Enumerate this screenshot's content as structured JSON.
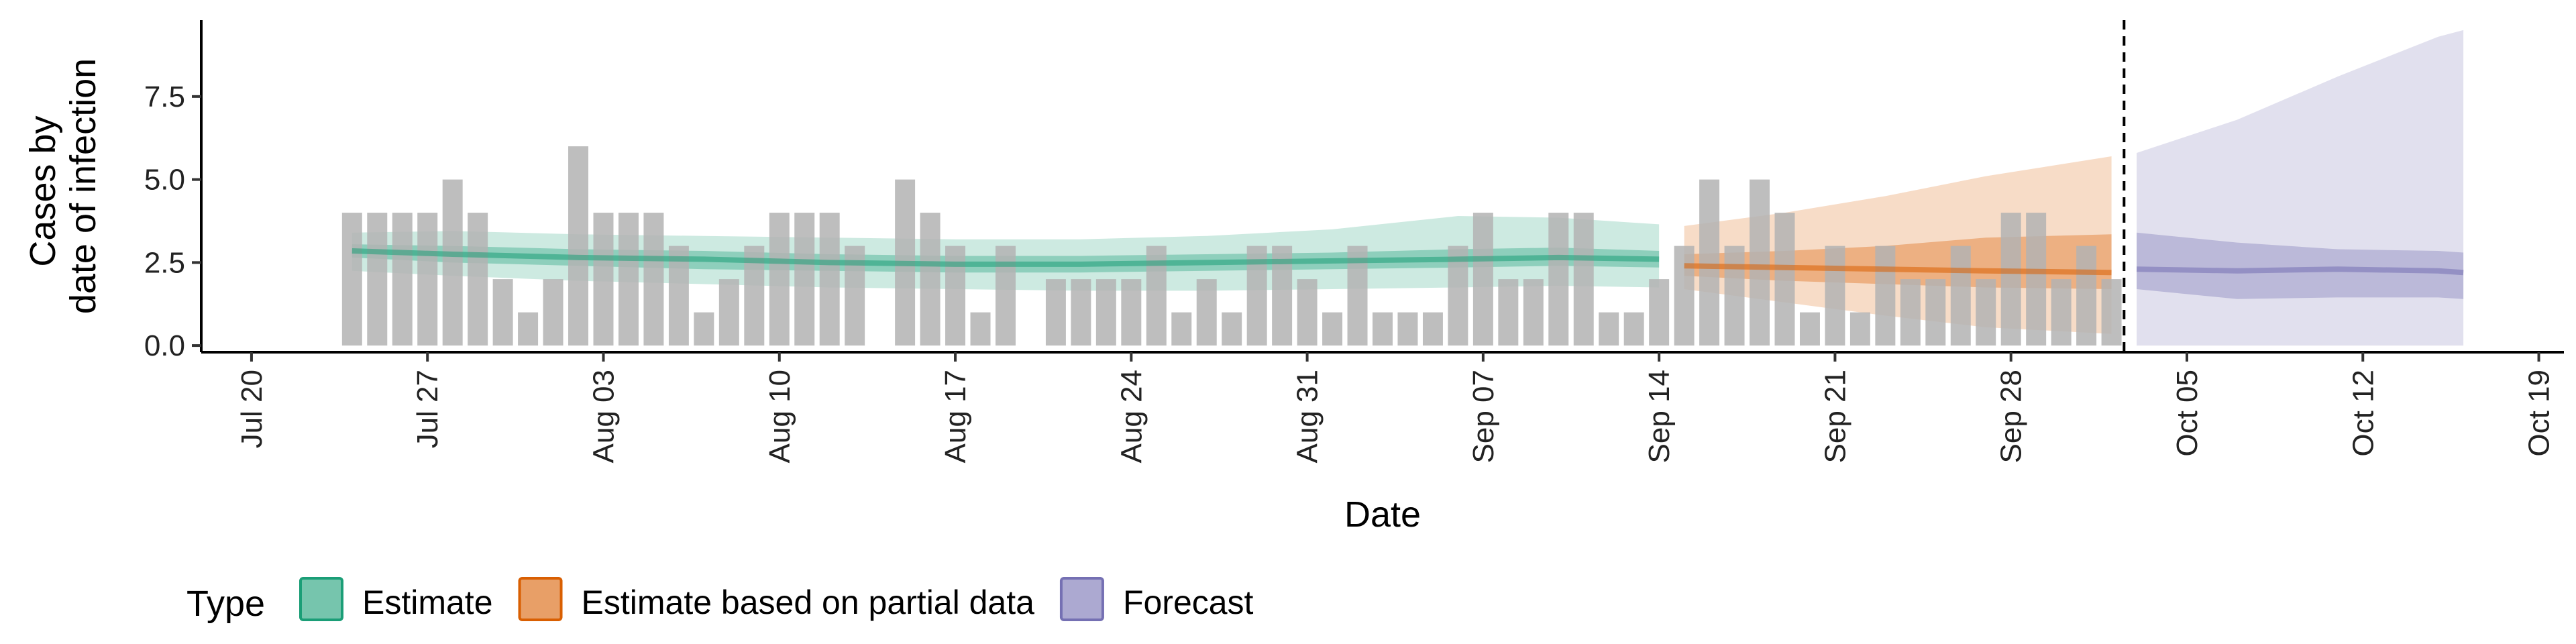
{
  "chart_data": {
    "type": "bar",
    "xlabel": "Date",
    "ylabel_lines": [
      "Cases by",
      "date of infection"
    ],
    "ylim": [
      -0.2,
      9.8
    ],
    "yticks": [
      {
        "value": 0.0,
        "label": "0.0"
      },
      {
        "value": 2.5,
        "label": "2.5"
      },
      {
        "value": 5.0,
        "label": "5.0"
      },
      {
        "value": 7.5,
        "label": "7.5"
      }
    ],
    "xlim": [
      "2020-07-18",
      "2020-10-20"
    ],
    "xticks": [
      {
        "date": "2020-07-20",
        "label": "Jul 20"
      },
      {
        "date": "2020-07-27",
        "label": "Jul 27"
      },
      {
        "date": "2020-08-03",
        "label": "Aug 03"
      },
      {
        "date": "2020-08-10",
        "label": "Aug 10"
      },
      {
        "date": "2020-08-17",
        "label": "Aug 17"
      },
      {
        "date": "2020-08-24",
        "label": "Aug 24"
      },
      {
        "date": "2020-08-31",
        "label": "Aug 31"
      },
      {
        "date": "2020-09-07",
        "label": "Sep 07"
      },
      {
        "date": "2020-09-14",
        "label": "Sep 14"
      },
      {
        "date": "2020-09-21",
        "label": "Sep 21"
      },
      {
        "date": "2020-09-28",
        "label": "Sep 28"
      },
      {
        "date": "2020-10-05",
        "label": "Oct 05"
      },
      {
        "date": "2020-10-12",
        "label": "Oct 12"
      },
      {
        "date": "2020-10-19",
        "label": "Oct 19"
      }
    ],
    "bar_color": "#b3b3b3",
    "cases": {
      "dates": [
        "2020-07-24",
        "2020-07-25",
        "2020-07-26",
        "2020-07-27",
        "2020-07-28",
        "2020-07-29",
        "2020-07-30",
        "2020-07-31",
        "2020-08-01",
        "2020-08-02",
        "2020-08-03",
        "2020-08-04",
        "2020-08-05",
        "2020-08-06",
        "2020-08-07",
        "2020-08-08",
        "2020-08-09",
        "2020-08-10",
        "2020-08-11",
        "2020-08-12",
        "2020-08-13",
        "2020-08-14",
        "2020-08-15",
        "2020-08-16",
        "2020-08-17",
        "2020-08-18",
        "2020-08-19",
        "2020-08-20",
        "2020-08-21",
        "2020-08-22",
        "2020-08-23",
        "2020-08-24",
        "2020-08-25",
        "2020-08-26",
        "2020-08-27",
        "2020-08-28",
        "2020-08-29",
        "2020-08-30",
        "2020-08-31",
        "2020-09-01",
        "2020-09-02",
        "2020-09-03",
        "2020-09-04",
        "2020-09-05",
        "2020-09-06",
        "2020-09-07",
        "2020-09-08",
        "2020-09-09",
        "2020-09-10",
        "2020-09-11",
        "2020-09-12",
        "2020-09-13",
        "2020-09-14",
        "2020-09-15",
        "2020-09-16",
        "2020-09-17",
        "2020-09-18",
        "2020-09-19",
        "2020-09-20",
        "2020-09-21",
        "2020-09-22",
        "2020-09-23",
        "2020-09-24",
        "2020-09-25",
        "2020-09-26",
        "2020-09-27",
        "2020-09-28",
        "2020-09-29",
        "2020-09-30",
        "2020-10-01",
        "2020-10-02"
      ],
      "values": [
        4,
        4,
        4,
        4,
        5,
        4,
        2,
        1,
        2,
        6,
        4,
        4,
        4,
        3,
        1,
        2,
        3,
        4,
        4,
        4,
        3,
        0,
        5,
        4,
        3,
        1,
        3,
        0,
        2,
        2,
        2,
        2,
        3,
        1,
        2,
        1,
        3,
        3,
        2,
        1,
        3,
        1,
        1,
        1,
        3,
        4,
        2,
        2,
        4,
        4,
        1,
        1,
        2,
        3,
        5,
        3,
        5,
        4,
        1,
        3,
        1,
        3,
        2,
        2,
        3,
        2,
        4,
        4,
        2,
        3,
        2
      ]
    },
    "series": [
      {
        "name": "Estimate",
        "color": "#1b9e77",
        "dates": [
          "2020-07-24",
          "2020-07-28",
          "2020-08-02",
          "2020-08-07",
          "2020-08-12",
          "2020-08-17",
          "2020-08-22",
          "2020-08-27",
          "2020-09-01",
          "2020-09-06",
          "2020-09-10",
          "2020-09-14"
        ],
        "median": [
          2.85,
          2.75,
          2.65,
          2.6,
          2.5,
          2.45,
          2.45,
          2.5,
          2.55,
          2.6,
          2.65,
          2.6
        ],
        "lower50": [
          2.65,
          2.5,
          2.4,
          2.3,
          2.25,
          2.2,
          2.2,
          2.25,
          2.3,
          2.35,
          2.4,
          2.35
        ],
        "upper50": [
          3.05,
          3.0,
          2.9,
          2.85,
          2.75,
          2.7,
          2.7,
          2.75,
          2.8,
          2.9,
          2.95,
          2.85
        ],
        "lower90": [
          2.25,
          2.1,
          1.95,
          1.85,
          1.75,
          1.7,
          1.65,
          1.65,
          1.7,
          1.75,
          1.8,
          1.75
        ],
        "upper90": [
          3.4,
          3.45,
          3.35,
          3.3,
          3.25,
          3.2,
          3.2,
          3.3,
          3.5,
          3.9,
          3.85,
          3.65
        ]
      },
      {
        "name": "Estimate based on partial data",
        "color": "#d95f02",
        "dates": [
          "2020-09-15",
          "2020-09-19",
          "2020-09-23",
          "2020-09-27",
          "2020-10-02"
        ],
        "median": [
          2.4,
          2.35,
          2.3,
          2.25,
          2.2
        ],
        "lower50": [
          2.1,
          1.95,
          1.85,
          1.75,
          1.7
        ],
        "upper50": [
          2.75,
          2.85,
          3.0,
          3.25,
          3.35
        ],
        "lower90": [
          1.7,
          1.3,
          0.9,
          0.55,
          0.35
        ],
        "upper90": [
          3.6,
          4.0,
          4.5,
          5.1,
          5.7
        ]
      },
      {
        "name": "Forecast",
        "color": "#7570b3",
        "dates": [
          "2020-10-03",
          "2020-10-07",
          "2020-10-11",
          "2020-10-15",
          "2020-10-16"
        ],
        "median": [
          2.3,
          2.25,
          2.3,
          2.25,
          2.2
        ],
        "lower50": [
          1.7,
          1.4,
          1.45,
          1.45,
          1.4
        ],
        "upper50": [
          3.4,
          3.1,
          2.9,
          2.85,
          2.8
        ],
        "lower90": [
          0.0,
          0.0,
          0.0,
          0.0,
          0.0
        ],
        "upper90": [
          5.8,
          6.8,
          8.1,
          9.3,
          9.5
        ]
      }
    ],
    "forecast_start_line": "2020-10-02",
    "legend": {
      "title": "Type",
      "position": "bottom",
      "items": [
        {
          "label": "Estimate",
          "color": "#1b9e77"
        },
        {
          "label": "Estimate based on partial data",
          "color": "#d95f02"
        },
        {
          "label": "Forecast",
          "color": "#7570b3"
        }
      ]
    },
    "grid": false
  }
}
